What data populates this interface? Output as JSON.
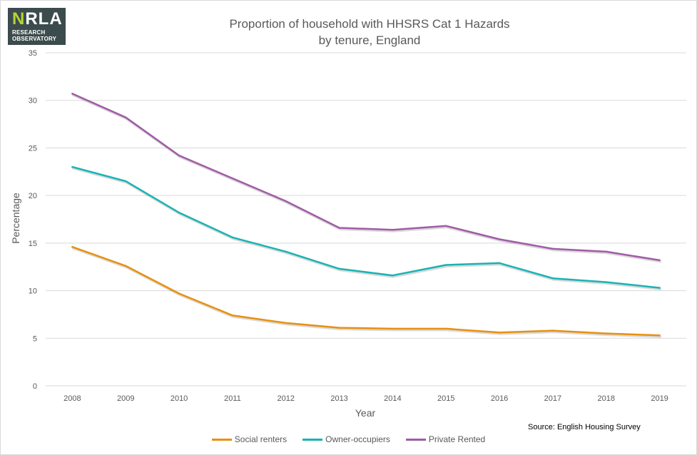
{
  "logo": {
    "main_n": "N",
    "main_rest": "RLA",
    "line1": "RESEARCH",
    "line2": "OBSERVATORY"
  },
  "colors": {
    "social": "#e8900f",
    "owner": "#1ab3b3",
    "private": "#a05ca6",
    "grid": "#d9d9d9"
  },
  "chart_data": {
    "type": "line",
    "title_line1": "Proportion of household with HHSRS Cat 1 Hazards",
    "title_line2": "by tenure, England",
    "xlabel": "Year",
    "ylabel": "Percentage",
    "source": "Source: English Housing Survey",
    "ylim": [
      0,
      35
    ],
    "yticks": [
      0,
      5,
      10,
      15,
      20,
      25,
      30,
      35
    ],
    "grid": true,
    "legend_position": "bottom",
    "categories": [
      "2008",
      "2009",
      "2010",
      "2011",
      "2012",
      "2013",
      "2014",
      "2015",
      "2016",
      "2017",
      "2018",
      "2019"
    ],
    "series": [
      {
        "key": "social",
        "name": "Social renters",
        "values": [
          14.6,
          12.6,
          9.7,
          7.4,
          6.6,
          6.1,
          6.0,
          6.0,
          5.6,
          5.8,
          5.5,
          5.3
        ]
      },
      {
        "key": "owner",
        "name": "Owner-occupiers",
        "values": [
          23.0,
          21.5,
          18.2,
          15.6,
          14.1,
          12.3,
          11.6,
          12.7,
          12.9,
          11.3,
          10.9,
          10.3
        ]
      },
      {
        "key": "private",
        "name": "Private Rented",
        "values": [
          30.7,
          28.2,
          24.2,
          21.8,
          19.4,
          16.6,
          16.4,
          16.8,
          15.4,
          14.4,
          14.1,
          13.2
        ]
      }
    ]
  }
}
